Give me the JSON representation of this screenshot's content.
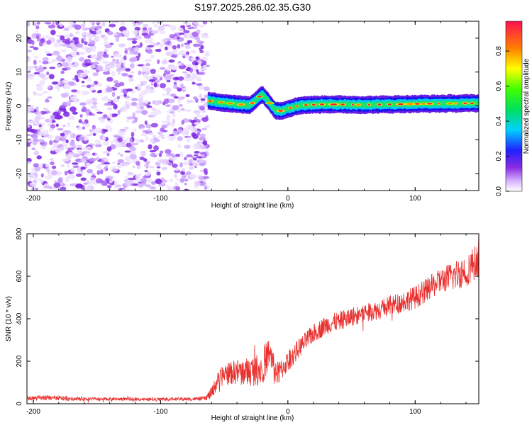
{
  "figure_title": "S197.2025.286.02.35.G30",
  "colors": {
    "snr_line": "#e8302e",
    "noise_purple": "#8a2be2",
    "background": "#ffffff",
    "axis": "#000000"
  },
  "chart_data": [
    {
      "type": "heatmap",
      "name": "spectrogram",
      "xlabel": "Height of straight line (km)",
      "ylabel": "Frequency (Hz)",
      "xlim": [
        -205,
        150
      ],
      "ylim": [
        -25,
        25
      ],
      "xticks": [
        -200,
        -100,
        0,
        100
      ],
      "xtick_labels": [
        "-200",
        "-100",
        "0",
        "100"
      ],
      "yticks": [
        -20,
        -10,
        0,
        10,
        20
      ],
      "ytick_labels": [
        "-20",
        "-10",
        "0",
        "10",
        "20"
      ],
      "noise_region_x": [
        -205,
        -63
      ],
      "ridge": {
        "x_start": -63,
        "x_end": 150,
        "center_frequency_points": [
          [
            -63,
            1.5
          ],
          [
            -40,
            0.5
          ],
          [
            -30,
            0.2
          ],
          [
            -20,
            3.5
          ],
          [
            -10,
            -1.2
          ],
          [
            -5,
            -1.5
          ],
          [
            0,
            -0.8
          ],
          [
            10,
            0.2
          ],
          [
            30,
            0.5
          ],
          [
            60,
            0.3
          ],
          [
            100,
            0.6
          ],
          [
            150,
            0.8
          ]
        ]
      },
      "colorbar": {
        "label": "Normalized spectral amplitude",
        "range": [
          0,
          0.97
        ],
        "ticks": [
          0.0,
          0.2,
          0.4,
          0.6,
          0.8
        ],
        "tick_labels": [
          "0.0",
          "0.2",
          "0.4",
          "0.6",
          "0.8"
        ]
      }
    },
    {
      "type": "line",
      "name": "snr",
      "xlabel": "Height of straight line (km)",
      "ylabel": "SNR (10 * v/v)",
      "xlim": [
        -205,
        150
      ],
      "ylim": [
        0,
        800
      ],
      "xticks": [
        -200,
        -100,
        0,
        100
      ],
      "xtick_labels": [
        "-200",
        "-100",
        "0",
        "100"
      ],
      "yticks": [
        0,
        200,
        400,
        600,
        800
      ],
      "ytick_labels": [
        "0",
        "200",
        "400",
        "600",
        "800"
      ],
      "series": [
        {
          "name": "SNR",
          "x": [
            -205,
            -190,
            -170,
            -150,
            -130,
            -110,
            -90,
            -75,
            -65,
            -60,
            -55,
            -50,
            -40,
            -30,
            -20,
            -15,
            -12,
            -8,
            -5,
            0,
            10,
            20,
            30,
            40,
            50,
            60,
            70,
            80,
            90,
            100,
            110,
            120,
            130,
            140,
            150
          ],
          "y": [
            25,
            28,
            24,
            22,
            23,
            21,
            22,
            22,
            25,
            50,
            110,
            140,
            150,
            150,
            170,
            240,
            190,
            140,
            160,
            200,
            270,
            330,
            370,
            390,
            410,
            430,
            440,
            460,
            480,
            500,
            540,
            580,
            600,
            630,
            680
          ],
          "noise_amplitude": [
            10,
            12,
            10,
            8,
            8,
            8,
            8,
            8,
            10,
            30,
            40,
            50,
            60,
            70,
            80,
            80,
            70,
            60,
            50,
            50,
            45,
            45,
            45,
            45,
            45,
            45,
            45,
            50,
            50,
            55,
            55,
            60,
            70,
            80,
            80
          ]
        }
      ]
    }
  ]
}
